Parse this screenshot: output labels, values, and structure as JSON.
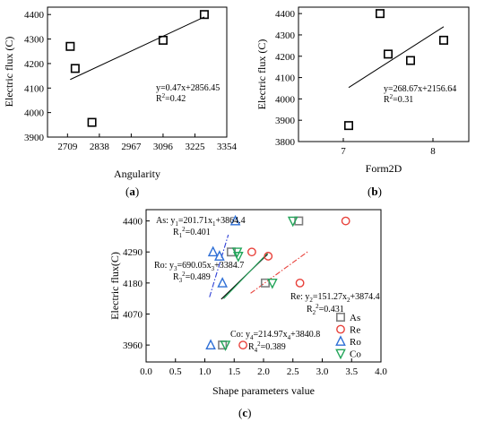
{
  "chart_data": [
    {
      "type": "scatter",
      "panel": "a",
      "panel_label_open": "(",
      "panel_label_letter": "a",
      "panel_label_close": ")",
      "xlabel": "Angularity",
      "ylabel": "Electric flux (C)",
      "xlim": [
        2628,
        3354
      ],
      "ylim": [
        3900,
        4430
      ],
      "xticks": [
        2709,
        2838,
        2967,
        3096,
        3225,
        3354
      ],
      "yticks": [
        3900,
        4000,
        4100,
        4200,
        4300,
        4400
      ],
      "points": [
        {
          "x": 2720,
          "y": 4270
        },
        {
          "x": 2740,
          "y": 4180
        },
        {
          "x": 2808,
          "y": 3960
        },
        {
          "x": 3096,
          "y": 4295
        },
        {
          "x": 3263,
          "y": 4400
        }
      ],
      "fit": {
        "slope": 0.47,
        "intercept": 2856.45,
        "x_from": 2720,
        "x_to": 3263
      },
      "equation": "y=0.47x+2856.45",
      "r2_prefix": "R",
      "r2_sup": "2",
      "r2_value": "=0.42"
    },
    {
      "type": "scatter",
      "panel": "b",
      "panel_label_open": "(",
      "panel_label_letter": "b",
      "panel_label_close": ")",
      "xlabel": "Form2D",
      "ylabel": "Electric flux (C)",
      "xlim": [
        6.5,
        8.4
      ],
      "ylim": [
        3800,
        4430
      ],
      "xticks": [
        7,
        8
      ],
      "yticks": [
        3800,
        3900,
        4000,
        4100,
        4200,
        4300,
        4400
      ],
      "points": [
        {
          "x": 7.06,
          "y": 3875
        },
        {
          "x": 7.41,
          "y": 4400
        },
        {
          "x": 7.5,
          "y": 4210
        },
        {
          "x": 7.75,
          "y": 4180
        },
        {
          "x": 8.12,
          "y": 4275
        }
      ],
      "fit": {
        "slope": 268.67,
        "intercept": 2156.64,
        "x_from": 7.06,
        "x_to": 8.12
      },
      "equation": "y=268.67x+2156.64",
      "r2_prefix": "R",
      "r2_sup": "2",
      "r2_value": "=0.31"
    },
    {
      "type": "scatter",
      "panel": "c",
      "panel_label_open": "(",
      "panel_label_letter": "c",
      "panel_label_close": ")",
      "xlabel": "Shape parameters value",
      "ylabel": "Electric flux(C)",
      "xlim": [
        0.0,
        4.0
      ],
      "ylim": [
        3900,
        4440
      ],
      "xticks": [
        "0.0",
        "0.5",
        "1.0",
        "1.5",
        "2.0",
        "2.5",
        "3.0",
        "3.5",
        "4.0"
      ],
      "yticks": [
        3960,
        4070,
        4180,
        4290,
        4400
      ],
      "series": [
        {
          "name": "As",
          "marker": "square",
          "color": "#7f7f7f",
          "points": [
            {
              "x": 1.3,
              "y": 3960
            },
            {
              "x": 1.45,
              "y": 4290
            },
            {
              "x": 2.03,
              "y": 4180
            },
            {
              "x": 2.6,
              "y": 4400
            }
          ],
          "fit": {
            "x_from": 1.28,
            "x_to": 2.07,
            "slope": 201.71,
            "intercept": 3864.4
          },
          "line_color": "#000000",
          "line_style": "solid",
          "eq_prefix": "As: ",
          "eq_y": "y",
          "eq_y_sub": "1",
          "eq_rhs": "=201.71x",
          "eq_x_sub": "1",
          "eq_const": "+3864.4",
          "r2_prefix": "R",
          "r2_sub": "1",
          "r2_sup": "2",
          "r2_value": "=0.401"
        },
        {
          "name": "Re",
          "marker": "circle",
          "color": "#e8403a",
          "points": [
            {
              "x": 1.65,
              "y": 3960
            },
            {
              "x": 1.8,
              "y": 4290
            },
            {
              "x": 2.08,
              "y": 4275
            },
            {
              "x": 2.62,
              "y": 4180
            },
            {
              "x": 3.4,
              "y": 4400
            }
          ],
          "fit": {
            "x_from": 1.78,
            "x_to": 2.75,
            "slope": 151.27,
            "intercept": 3874.4
          },
          "line_color": "#e8403a",
          "line_style": "dashdot",
          "eq_prefix": "Re: ",
          "eq_y": "y",
          "eq_y_sub": "2",
          "eq_rhs": "=151.27x",
          "eq_x_sub": "2",
          "eq_const": "+3874.4",
          "r2_prefix": "R",
          "r2_sub": "2",
          "r2_sup": "2",
          "r2_value": "=0.431"
        },
        {
          "name": "Ro",
          "marker": "triangle-up",
          "color": "#2e6fd6",
          "points": [
            {
              "x": 1.1,
              "y": 3960
            },
            {
              "x": 1.14,
              "y": 4290
            },
            {
              "x": 1.3,
              "y": 4180
            },
            {
              "x": 1.52,
              "y": 4400
            },
            {
              "x": 1.25,
              "y": 4275
            }
          ],
          "fit": {
            "x_from": 1.08,
            "x_to": 1.4,
            "slope": 690.05,
            "intercept": 3384.7
          },
          "line_color": "#2e3fd6",
          "line_style": "dashdot",
          "eq_prefix": "Ro: ",
          "eq_y": "y",
          "eq_y_sub": "3",
          "eq_rhs": "=690.05x",
          "eq_x_sub": "3",
          "eq_const": "+3384.7",
          "r2_prefix": "R",
          "r2_sub": "3",
          "r2_sup": "2",
          "r2_value": "=0.489"
        },
        {
          "name": "Co",
          "marker": "triangle-down",
          "color": "#23a55a",
          "points": [
            {
              "x": 1.35,
              "y": 3960
            },
            {
              "x": 1.55,
              "y": 4290
            },
            {
              "x": 1.57,
              "y": 4275
            },
            {
              "x": 2.15,
              "y": 4180
            },
            {
              "x": 2.5,
              "y": 4400
            }
          ],
          "fit": {
            "x_from": 1.32,
            "x_to": 2.07,
            "slope": 214.97,
            "intercept": 3840.8
          },
          "line_color": "#23a55a",
          "line_style": "solid",
          "eq_prefix": "Co: ",
          "eq_y": "y",
          "eq_y_sub": "4",
          "eq_rhs": "=214.97x",
          "eq_x_sub": "4",
          "eq_const": "+3840.8",
          "r2_prefix": "R",
          "r2_sub": "4",
          "r2_sup": "2",
          "r2_value": "=0.389"
        }
      ],
      "legend": [
        "As",
        "Re",
        "Ro",
        "Co"
      ]
    }
  ]
}
